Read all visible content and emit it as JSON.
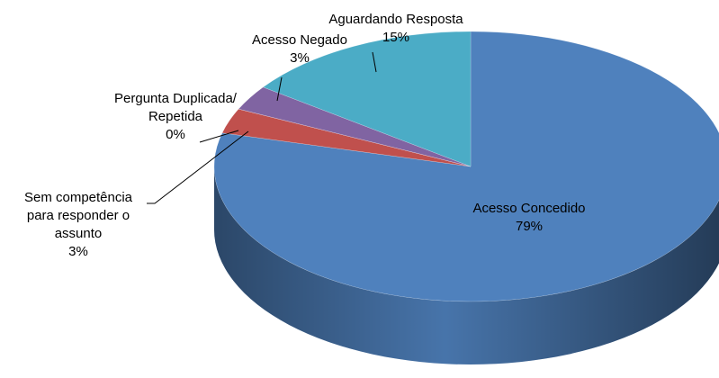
{
  "chart_data": {
    "type": "pie",
    "categories": [
      "Acesso Concedido",
      "Sem competência para responder o assunto",
      "Pergunta Duplicada/ Repetida",
      "Acesso Negado",
      "Aguardando Resposta"
    ],
    "values": [
      79,
      3,
      0,
      3,
      15
    ],
    "value_labels": [
      "79%",
      "3%",
      "0%",
      "3%",
      "15%"
    ],
    "colors": [
      "#4f81bd",
      "#c0504d",
      "#9bbb59",
      "#8064a2",
      "#4bacc6"
    ]
  }
}
